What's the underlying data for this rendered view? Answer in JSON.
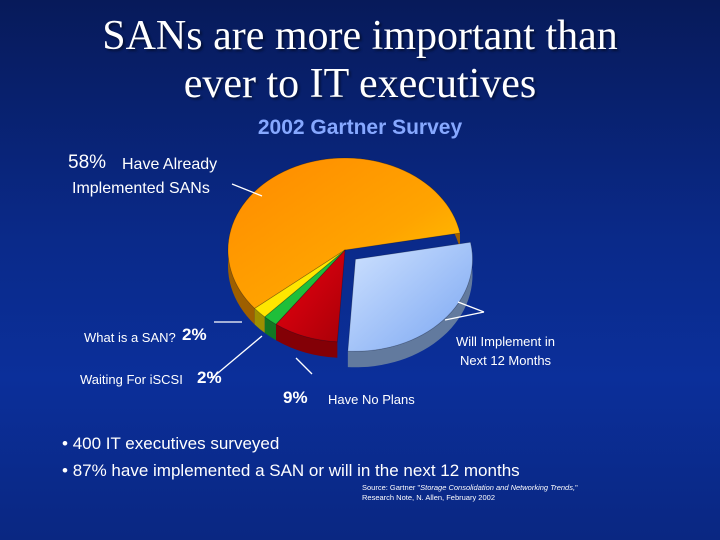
{
  "slide": {
    "title_line1": "SANs are more important than",
    "title_line2": "ever to IT executives",
    "subtitle": "2002 Gartner Survey"
  },
  "labels": {
    "already_pct": "58%",
    "already_text1": "Have Already",
    "already_text2": "Implemented SANs",
    "san_text": "What is a SAN?",
    "san_pct": "2%",
    "iscsi_text": "Waiting For iSCSI",
    "iscsi_pct": "2%",
    "noplans_pct": "9%",
    "noplans_text": "Have No Plans",
    "will_text1": "Will Implement in",
    "will_text2": "Next 12 Months"
  },
  "bullets": [
    "400 IT executives surveyed",
    "87% have implemented a SAN or will in the next 12 months"
  ],
  "source": {
    "prefix": "Source: Gartner \"",
    "title": "Storage Consolidation and Networking Trends,",
    "suffix_line1": "\"",
    "line2": "Research Note, N. Allen, February 2002"
  },
  "chart_data": {
    "type": "pie",
    "title": "2002 Gartner Survey",
    "slices": [
      {
        "label": "Have Already Implemented SANs",
        "value": 58,
        "color": "#ff9a00"
      },
      {
        "label": "Will Implement in Next 12 Months",
        "value": 29,
        "color": "#9ec4ff"
      },
      {
        "label": "Have No Plans",
        "value": 9,
        "color": "#d4000a"
      },
      {
        "label": "Waiting For iSCSI",
        "value": 2,
        "color": "#1fbf3a"
      },
      {
        "label": "What is a SAN?",
        "value": 2,
        "color": "#ffe600"
      }
    ]
  }
}
